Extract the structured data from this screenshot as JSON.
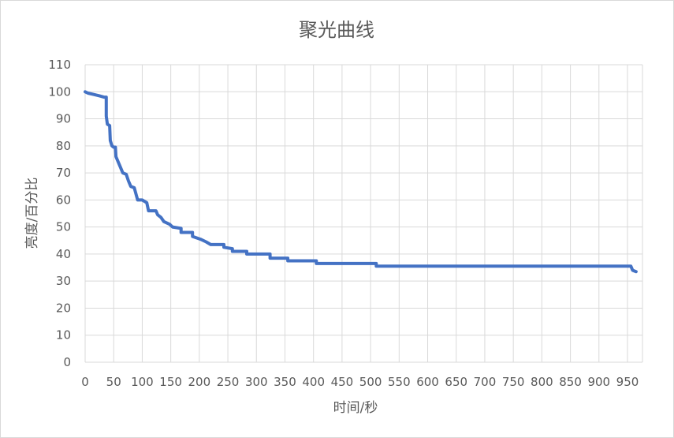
{
  "chart_data": {
    "type": "line",
    "title": "聚光曲线",
    "xlabel": "时间/秒",
    "ylabel": "亮度/百分比",
    "xlim": [
      0,
      960
    ],
    "ylim": [
      0,
      110
    ],
    "x_ticks": [
      0,
      50,
      100,
      150,
      200,
      250,
      300,
      350,
      400,
      450,
      500,
      550,
      600,
      650,
      700,
      750,
      800,
      850,
      900,
      950
    ],
    "y_ticks": [
      0,
      10,
      20,
      30,
      40,
      50,
      60,
      70,
      80,
      90,
      100,
      110
    ],
    "grid": true,
    "legend": "none",
    "line_color": "#4472C4",
    "grid_color": "#d9d9d9",
    "series": [
      {
        "points": [
          [
            0,
            100
          ],
          [
            5,
            99.5
          ],
          [
            15,
            99
          ],
          [
            25,
            98.5
          ],
          [
            33,
            98
          ],
          [
            37,
            98
          ],
          [
            37,
            91
          ],
          [
            39,
            88
          ],
          [
            43,
            87.5
          ],
          [
            44,
            82
          ],
          [
            47,
            80
          ],
          [
            50,
            79.5
          ],
          [
            53,
            79.5
          ],
          [
            54,
            76
          ],
          [
            58,
            74
          ],
          [
            62,
            72
          ],
          [
            66,
            70
          ],
          [
            72,
            69.5
          ],
          [
            76,
            67
          ],
          [
            80,
            65
          ],
          [
            86,
            64.5
          ],
          [
            92,
            60
          ],
          [
            100,
            60
          ],
          [
            104,
            59.5
          ],
          [
            108,
            59
          ],
          [
            111,
            56
          ],
          [
            124,
            56
          ],
          [
            127,
            54.5
          ],
          [
            133,
            53.5
          ],
          [
            138,
            52
          ],
          [
            148,
            51
          ],
          [
            153,
            50
          ],
          [
            168,
            49.5
          ],
          [
            168,
            48
          ],
          [
            188,
            48
          ],
          [
            188,
            46.5
          ],
          [
            202,
            45.5
          ],
          [
            212,
            44.5
          ],
          [
            220,
            43.5
          ],
          [
            243,
            43.5
          ],
          [
            243,
            42.5
          ],
          [
            258,
            42
          ],
          [
            258,
            41
          ],
          [
            283,
            41
          ],
          [
            283,
            40
          ],
          [
            324,
            40
          ],
          [
            324,
            38.5
          ],
          [
            355,
            38.5
          ],
          [
            355,
            37.5
          ],
          [
            405,
            37.5
          ],
          [
            405,
            36.5
          ],
          [
            510,
            36.5
          ],
          [
            510,
            35.5
          ],
          [
            956,
            35.5
          ],
          [
            959,
            34
          ],
          [
            965,
            33.5
          ]
        ]
      }
    ]
  }
}
